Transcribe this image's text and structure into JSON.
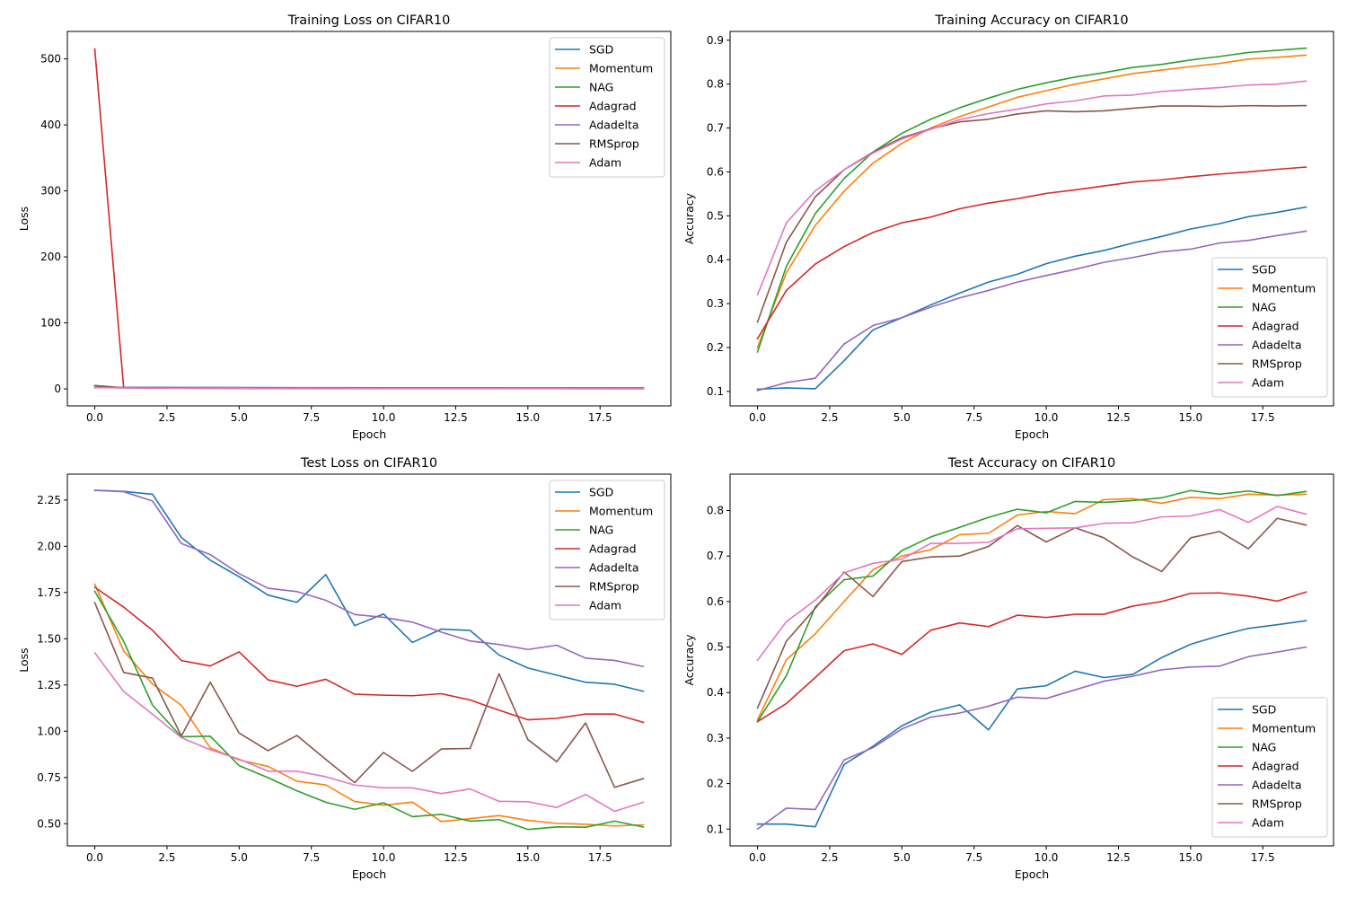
{
  "colors": {
    "SGD": "#1f77b4",
    "Momentum": "#ff7f0e",
    "NAG": "#2ca02c",
    "Adagrad": "#d62728",
    "Adadelta": "#9467bd",
    "RMSprop": "#8c564b",
    "Adam": "#e377c2"
  },
  "chart_data": [
    {
      "type": "line",
      "title": "Training Loss on CIFAR10",
      "xlabel": "Epoch",
      "ylabel": "Loss",
      "xlim": [
        -0.95,
        19.95
      ],
      "ylim": [
        -25.8,
        541.6
      ],
      "xticks": [
        "0.0",
        "2.5",
        "5.0",
        "7.5",
        "10.0",
        "12.5",
        "15.0",
        "17.5"
      ],
      "yticks": [
        "0",
        "100",
        "200",
        "300",
        "400",
        "500"
      ],
      "legend": "top-right",
      "grid": false,
      "x": [
        0,
        1,
        2,
        3,
        4,
        5,
        6,
        7,
        8,
        9,
        10,
        11,
        12,
        13,
        14,
        15,
        16,
        17,
        18,
        19
      ],
      "series": [
        {
          "name": "SGD",
          "values": [
            2.3,
            2.29,
            2.28,
            2.1,
            1.98,
            1.9,
            1.82,
            1.74,
            1.68,
            1.64,
            1.58,
            1.55,
            1.51,
            1.47,
            1.43,
            1.39,
            1.35,
            1.31,
            1.28,
            1.25
          ]
        },
        {
          "name": "Momentum",
          "values": [
            2.2,
            1.75,
            1.47,
            1.25,
            1.08,
            0.95,
            0.86,
            0.78,
            0.72,
            0.66,
            0.61,
            0.57,
            0.53,
            0.5,
            0.47,
            0.44,
            0.41,
            0.39,
            0.37,
            0.35
          ]
        },
        {
          "name": "NAG",
          "values": [
            2.18,
            1.7,
            1.4,
            1.18,
            1.01,
            0.89,
            0.8,
            0.73,
            0.67,
            0.61,
            0.57,
            0.53,
            0.49,
            0.46,
            0.43,
            0.4,
            0.38,
            0.36,
            0.34,
            0.32
          ]
        },
        {
          "name": "Adagrad",
          "values": [
            515.0,
            2.0,
            1.7,
            1.6,
            1.52,
            1.46,
            1.42,
            1.37,
            1.34,
            1.3,
            1.27,
            1.25,
            1.23,
            1.21,
            1.19,
            1.17,
            1.15,
            1.14,
            1.12,
            1.1
          ]
        },
        {
          "name": "Adadelta",
          "values": [
            2.3,
            2.28,
            2.25,
            2.15,
            2.05,
            1.98,
            1.92,
            1.87,
            1.82,
            1.78,
            1.74,
            1.7,
            1.67,
            1.64,
            1.61,
            1.58,
            1.55,
            1.52,
            1.5,
            1.48
          ]
        },
        {
          "name": "RMSprop",
          "values": [
            5.0,
            1.6,
            1.3,
            1.1,
            0.98,
            0.9,
            0.84,
            0.8,
            0.78,
            0.76,
            0.75,
            0.74,
            0.74,
            0.73,
            0.72,
            0.72,
            0.72,
            0.71,
            0.71,
            0.71
          ]
        },
        {
          "name": "Adam",
          "values": [
            1.9,
            1.45,
            1.25,
            1.1,
            1.0,
            0.93,
            0.87,
            0.82,
            0.78,
            0.74,
            0.71,
            0.68,
            0.66,
            0.64,
            0.62,
            0.6,
            0.58,
            0.57,
            0.56,
            0.55
          ]
        }
      ]
    },
    {
      "type": "line",
      "title": "Training Accuracy on CIFAR10",
      "xlabel": "Epoch",
      "ylabel": "Accuracy",
      "xlim": [
        -0.95,
        19.95
      ],
      "ylim": [
        0.067,
        0.92
      ],
      "xticks": [
        "0.0",
        "2.5",
        "5.0",
        "7.5",
        "10.0",
        "12.5",
        "15.0",
        "17.5"
      ],
      "yticks": [
        "0.1",
        "0.2",
        "0.3",
        "0.4",
        "0.5",
        "0.6",
        "0.7",
        "0.8",
        "0.9"
      ],
      "legend": "bottom-right",
      "grid": false,
      "x": [
        0,
        1,
        2,
        3,
        4,
        5,
        6,
        7,
        8,
        9,
        10,
        11,
        12,
        13,
        14,
        15,
        16,
        17,
        18,
        19
      ],
      "series": [
        {
          "name": "SGD",
          "values": [
            0.105,
            0.108,
            0.106,
            0.17,
            0.24,
            0.268,
            0.297,
            0.324,
            0.349,
            0.367,
            0.391,
            0.408,
            0.421,
            0.438,
            0.453,
            0.47,
            0.482,
            0.498,
            0.508,
            0.52
          ]
        },
        {
          "name": "Momentum",
          "values": [
            0.2,
            0.37,
            0.478,
            0.556,
            0.62,
            0.665,
            0.7,
            0.726,
            0.748,
            0.77,
            0.785,
            0.8,
            0.812,
            0.824,
            0.832,
            0.84,
            0.847,
            0.857,
            0.861,
            0.866
          ]
        },
        {
          "name": "NAG",
          "values": [
            0.19,
            0.385,
            0.505,
            0.585,
            0.645,
            0.688,
            0.72,
            0.746,
            0.768,
            0.788,
            0.803,
            0.816,
            0.826,
            0.838,
            0.845,
            0.855,
            0.863,
            0.872,
            0.877,
            0.882
          ]
        },
        {
          "name": "Adagrad",
          "values": [
            0.22,
            0.33,
            0.39,
            0.43,
            0.462,
            0.484,
            0.497,
            0.516,
            0.529,
            0.539,
            0.551,
            0.559,
            0.568,
            0.577,
            0.582,
            0.589,
            0.595,
            0.6,
            0.606,
            0.611
          ]
        },
        {
          "name": "Adadelta",
          "values": [
            0.102,
            0.12,
            0.13,
            0.208,
            0.25,
            0.268,
            0.292,
            0.313,
            0.33,
            0.349,
            0.364,
            0.378,
            0.394,
            0.405,
            0.418,
            0.424,
            0.438,
            0.444,
            0.455,
            0.465
          ]
        },
        {
          "name": "RMSprop",
          "values": [
            0.258,
            0.44,
            0.543,
            0.605,
            0.645,
            0.678,
            0.698,
            0.714,
            0.72,
            0.732,
            0.739,
            0.737,
            0.739,
            0.745,
            0.75,
            0.75,
            0.749,
            0.751,
            0.75,
            0.751
          ]
        },
        {
          "name": "Adam",
          "values": [
            0.32,
            0.484,
            0.557,
            0.605,
            0.643,
            0.675,
            0.697,
            0.719,
            0.733,
            0.743,
            0.755,
            0.762,
            0.773,
            0.775,
            0.783,
            0.788,
            0.792,
            0.798,
            0.8,
            0.807
          ]
        }
      ]
    },
    {
      "type": "line",
      "title": "Test Loss on CIFAR10",
      "xlabel": "Epoch",
      "ylabel": "Loss",
      "xlim": [
        -0.95,
        19.95
      ],
      "ylim": [
        0.38,
        2.39
      ],
      "xticks": [
        "0.0",
        "2.5",
        "5.0",
        "7.5",
        "10.0",
        "12.5",
        "15.0",
        "17.5"
      ],
      "yticks": [
        "0.50",
        "0.75",
        "1.00",
        "1.25",
        "1.50",
        "1.75",
        "2.00",
        "2.25"
      ],
      "legend": "top-right",
      "grid": false,
      "x": [
        0,
        1,
        2,
        3,
        4,
        5,
        6,
        7,
        8,
        9,
        10,
        11,
        12,
        13,
        14,
        15,
        16,
        17,
        18,
        19
      ],
      "series": [
        {
          "name": "SGD",
          "values": [
            2.303,
            2.297,
            2.281,
            2.047,
            1.925,
            1.835,
            1.736,
            1.697,
            1.847,
            1.571,
            1.634,
            1.48,
            1.552,
            1.545,
            1.412,
            1.342,
            1.303,
            1.265,
            1.254,
            1.216
          ]
        },
        {
          "name": "Momentum",
          "values": [
            1.795,
            1.435,
            1.255,
            1.14,
            0.91,
            0.845,
            0.81,
            0.73,
            0.71,
            0.62,
            0.6,
            0.617,
            0.512,
            0.527,
            0.544,
            0.518,
            0.502,
            0.497,
            0.488,
            0.494
          ]
        },
        {
          "name": "NAG",
          "values": [
            1.757,
            1.486,
            1.141,
            0.97,
            0.973,
            0.814,
            0.749,
            0.678,
            0.616,
            0.578,
            0.613,
            0.538,
            0.551,
            0.514,
            0.522,
            0.469,
            0.483,
            0.481,
            0.514,
            0.482
          ]
        },
        {
          "name": "Adagrad",
          "values": [
            1.778,
            1.671,
            1.546,
            1.382,
            1.353,
            1.429,
            1.278,
            1.243,
            1.281,
            1.2,
            1.195,
            1.192,
            1.203,
            1.169,
            1.114,
            1.062,
            1.07,
            1.093,
            1.093,
            1.048
          ]
        },
        {
          "name": "Adadelta",
          "values": [
            2.302,
            2.295,
            2.245,
            2.015,
            1.955,
            1.852,
            1.773,
            1.755,
            1.708,
            1.631,
            1.616,
            1.59,
            1.536,
            1.488,
            1.469,
            1.442,
            1.465,
            1.395,
            1.383,
            1.35
          ]
        },
        {
          "name": "RMSprop",
          "values": [
            1.695,
            1.318,
            1.287,
            0.975,
            1.265,
            0.99,
            0.895,
            0.977,
            0.848,
            0.722,
            0.885,
            0.783,
            0.904,
            0.907,
            1.311,
            0.955,
            0.835,
            1.045,
            0.697,
            0.744
          ]
        },
        {
          "name": "Adam",
          "values": [
            1.424,
            1.215,
            1.092,
            0.965,
            0.9,
            0.849,
            0.784,
            0.784,
            0.754,
            0.709,
            0.694,
            0.694,
            0.663,
            0.688,
            0.621,
            0.619,
            0.588,
            0.658,
            0.567,
            0.616
          ]
        }
      ]
    },
    {
      "type": "line",
      "title": "Test Accuracy on CIFAR10",
      "xlabel": "Epoch",
      "ylabel": "Accuracy",
      "xlim": [
        -0.95,
        19.95
      ],
      "ylim": [
        0.063,
        0.88
      ],
      "xticks": [
        "0.0",
        "2.5",
        "5.0",
        "7.5",
        "10.0",
        "12.5",
        "15.0",
        "17.5"
      ],
      "yticks": [
        "0.1",
        "0.2",
        "0.3",
        "0.4",
        "0.5",
        "0.6",
        "0.7",
        "0.8"
      ],
      "legend": "bottom-right",
      "grid": false,
      "x": [
        0,
        1,
        2,
        3,
        4,
        5,
        6,
        7,
        8,
        9,
        10,
        11,
        12,
        13,
        14,
        15,
        16,
        17,
        18,
        19
      ],
      "series": [
        {
          "name": "SGD",
          "values": [
            0.111,
            0.111,
            0.105,
            0.242,
            0.282,
            0.327,
            0.357,
            0.373,
            0.318,
            0.408,
            0.415,
            0.447,
            0.433,
            0.44,
            0.477,
            0.506,
            0.525,
            0.541,
            0.549,
            0.558
          ]
        },
        {
          "name": "Momentum",
          "values": [
            0.34,
            0.472,
            0.529,
            0.6,
            0.67,
            0.7,
            0.714,
            0.747,
            0.75,
            0.79,
            0.798,
            0.793,
            0.824,
            0.826,
            0.816,
            0.829,
            0.826,
            0.836,
            0.834,
            0.836
          ]
        },
        {
          "name": "NAG",
          "values": [
            0.336,
            0.437,
            0.588,
            0.648,
            0.656,
            0.712,
            0.742,
            0.763,
            0.785,
            0.803,
            0.795,
            0.82,
            0.818,
            0.822,
            0.828,
            0.844,
            0.836,
            0.843,
            0.833,
            0.842
          ]
        },
        {
          "name": "Adagrad",
          "values": [
            0.336,
            0.376,
            0.433,
            0.492,
            0.507,
            0.484,
            0.537,
            0.553,
            0.545,
            0.57,
            0.565,
            0.572,
            0.572,
            0.59,
            0.6,
            0.618,
            0.619,
            0.612,
            0.601,
            0.621
          ]
        },
        {
          "name": "Adadelta",
          "values": [
            0.1,
            0.146,
            0.143,
            0.252,
            0.279,
            0.32,
            0.346,
            0.355,
            0.37,
            0.39,
            0.387,
            0.406,
            0.425,
            0.436,
            0.45,
            0.456,
            0.458,
            0.479,
            0.489,
            0.5
          ]
        },
        {
          "name": "RMSprop",
          "values": [
            0.366,
            0.513,
            0.585,
            0.665,
            0.611,
            0.688,
            0.698,
            0.7,
            0.721,
            0.767,
            0.731,
            0.762,
            0.74,
            0.698,
            0.666,
            0.74,
            0.754,
            0.716,
            0.783,
            0.768
          ]
        },
        {
          "name": "Adam",
          "values": [
            0.471,
            0.556,
            0.603,
            0.663,
            0.684,
            0.693,
            0.728,
            0.728,
            0.73,
            0.76,
            0.761,
            0.762,
            0.772,
            0.773,
            0.786,
            0.788,
            0.802,
            0.774,
            0.809,
            0.792
          ]
        }
      ]
    }
  ]
}
